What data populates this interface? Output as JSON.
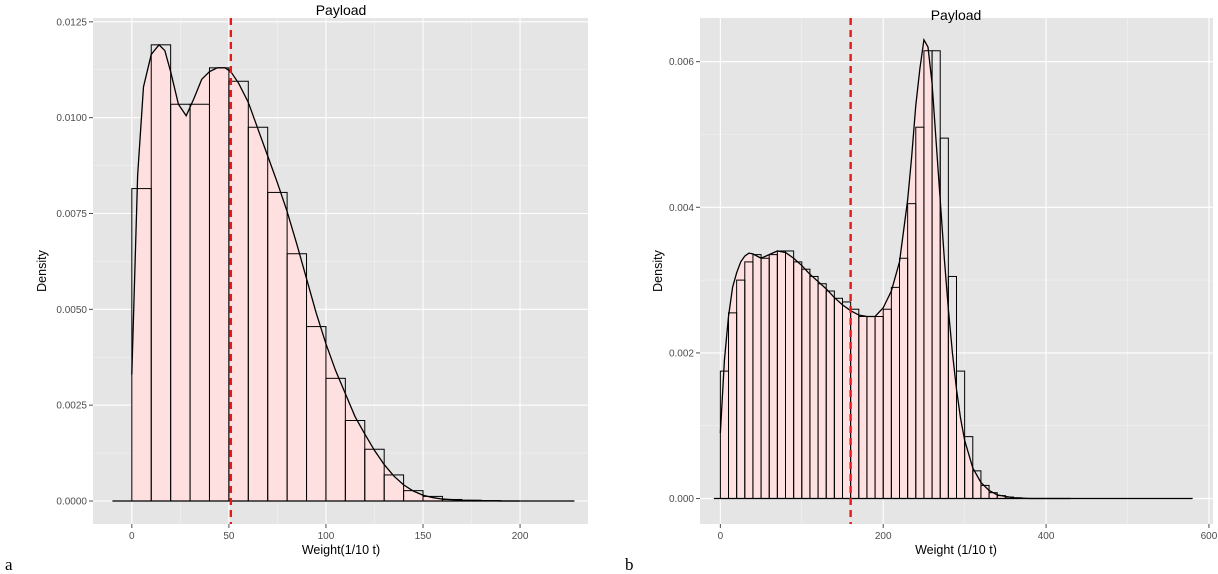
{
  "colors": {
    "density_fill": "#ffe0e0",
    "mean_line": "#e41a1c"
  },
  "panels": [
    {
      "tag": "a"
    },
    {
      "tag": "b"
    }
  ],
  "chart_data": [
    {
      "type": "bar",
      "title": "Payload",
      "xlabel": "Weight(1/10 t)",
      "ylabel": "Density",
      "xlim": [
        -20,
        235
      ],
      "ylim": [
        -0.0006,
        0.0126
      ],
      "xticks": [
        0,
        50,
        100,
        150,
        200
      ],
      "xtick_labels": [
        "0",
        "50",
        "100",
        "150",
        "200"
      ],
      "yticks": [
        0,
        0.0025,
        0.005,
        0.0075,
        0.01,
        0.0125
      ],
      "ytick_labels": [
        "0.0000",
        "0.0025",
        "0.0050",
        "0.0075",
        "0.0100",
        "0.0125"
      ],
      "grid": true,
      "baseline_range": [
        -10,
        228
      ],
      "histogram": {
        "bin_edges": [
          0,
          10,
          20,
          30,
          40,
          50,
          60,
          70,
          80,
          90,
          100,
          110,
          120,
          130,
          140,
          150,
          160,
          170,
          180,
          190,
          200
        ],
        "densities": [
          0.00815,
          0.0119,
          0.01035,
          0.01035,
          0.0113,
          0.01095,
          0.00975,
          0.00805,
          0.00645,
          0.00455,
          0.0032,
          0.0021,
          0.00135,
          0.00068,
          0.00027,
          0.00012,
          4e-05,
          2e-05,
          1e-05,
          0.0
        ]
      },
      "density_curve": {
        "x": [
          0,
          3,
          6,
          10,
          14,
          17,
          20,
          24,
          28,
          32,
          36,
          40,
          44,
          48,
          51,
          55,
          60,
          65,
          70,
          75,
          80,
          85,
          90,
          95,
          100,
          105,
          110,
          115,
          120,
          125,
          130,
          135,
          140,
          145,
          150,
          155,
          160,
          170,
          180,
          190,
          200
        ],
        "y": [
          0.0033,
          0.0085,
          0.0108,
          0.01165,
          0.0119,
          0.01175,
          0.0112,
          0.01035,
          0.01005,
          0.0105,
          0.011,
          0.0112,
          0.0113,
          0.0113,
          0.0112,
          0.0109,
          0.0104,
          0.0097,
          0.009,
          0.0083,
          0.00755,
          0.0067,
          0.0058,
          0.0049,
          0.0041,
          0.0034,
          0.0028,
          0.0022,
          0.00175,
          0.00132,
          0.00095,
          0.00065,
          0.00042,
          0.00026,
          0.00015,
          9e-05,
          5e-05,
          2e-05,
          1e-05,
          0.0,
          0.0
        ]
      },
      "mean_line_x": 51
    },
    {
      "type": "bar",
      "title": "Payload",
      "xlabel": "Weight (1/10 t)",
      "ylabel": "Density",
      "xlim": [
        -25,
        605
      ],
      "ylim": [
        -0.00035,
        0.0066
      ],
      "xticks": [
        0,
        200,
        400,
        600
      ],
      "xtick_labels": [
        "0",
        "200",
        "400",
        "600"
      ],
      "yticks": [
        0,
        0.002,
        0.004,
        0.006
      ],
      "ytick_labels": [
        "0.000",
        "0.002",
        "0.004",
        "0.006"
      ],
      "grid": true,
      "baseline_range": [
        -8,
        580
      ],
      "histogram": {
        "bin_edges": [
          0,
          10,
          20,
          30,
          40,
          50,
          60,
          70,
          80,
          90,
          100,
          110,
          120,
          130,
          140,
          150,
          160,
          170,
          180,
          190,
          200,
          210,
          220,
          230,
          240,
          250,
          260,
          270,
          280,
          290,
          300,
          310,
          320,
          330,
          340,
          350,
          360,
          370,
          380,
          390,
          400
        ],
        "densities": [
          0.00175,
          0.00255,
          0.003,
          0.00325,
          0.00335,
          0.0033,
          0.00335,
          0.0034,
          0.0034,
          0.00325,
          0.00315,
          0.00305,
          0.00295,
          0.00285,
          0.00275,
          0.0027,
          0.0026,
          0.0025,
          0.0025,
          0.0025,
          0.0026,
          0.0029,
          0.0033,
          0.00405,
          0.0051,
          0.00615,
          0.00615,
          0.00495,
          0.00305,
          0.00175,
          0.00085,
          0.00038,
          0.00018,
          8e-05,
          4e-05,
          2e-05,
          1e-05,
          0.0,
          0.0,
          0.0
        ]
      },
      "density_curve": {
        "x": [
          0,
          5,
          10,
          15,
          20,
          25,
          30,
          35,
          40,
          50,
          60,
          70,
          80,
          90,
          100,
          110,
          120,
          130,
          140,
          150,
          160,
          170,
          180,
          190,
          200,
          210,
          220,
          230,
          235,
          240,
          245,
          250,
          255,
          260,
          265,
          270,
          275,
          280,
          285,
          290,
          295,
          300,
          310,
          320,
          330,
          340,
          350,
          360,
          380,
          400,
          430
        ],
        "y": [
          0.0009,
          0.0019,
          0.0025,
          0.0029,
          0.0031,
          0.00325,
          0.00333,
          0.00337,
          0.00336,
          0.0033,
          0.00335,
          0.0034,
          0.00338,
          0.0033,
          0.0032,
          0.00308,
          0.00298,
          0.00288,
          0.00276,
          0.00266,
          0.00258,
          0.00252,
          0.0025,
          0.0025,
          0.00262,
          0.00285,
          0.00325,
          0.0041,
          0.0047,
          0.0054,
          0.0059,
          0.0063,
          0.0062,
          0.0057,
          0.0049,
          0.0041,
          0.0033,
          0.0026,
          0.002,
          0.0015,
          0.0011,
          0.0008,
          0.00042,
          0.00022,
          0.00011,
          5e-05,
          3e-05,
          1e-05,
          0.0,
          0.0,
          0.0
        ]
      },
      "mean_line_x": 160
    }
  ]
}
